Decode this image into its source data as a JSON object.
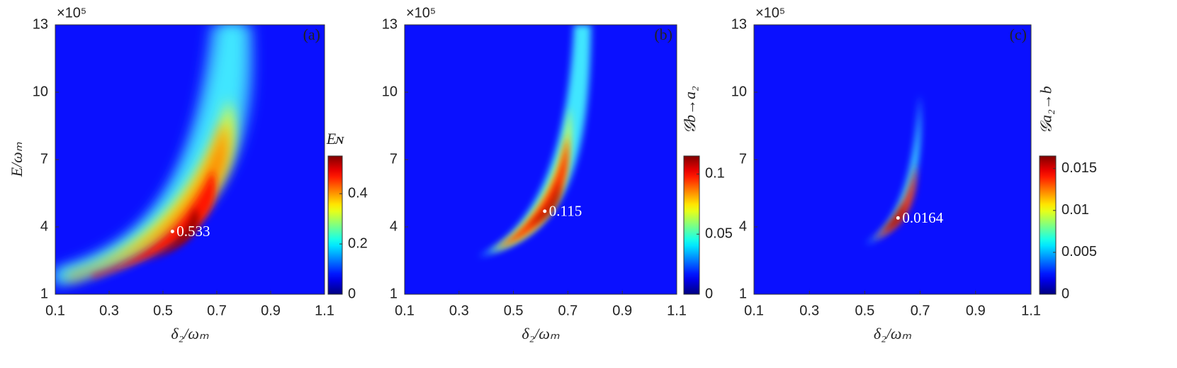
{
  "chart_data": [
    {
      "type": "heatmap",
      "panel_label": "(a)",
      "xlabel": "δ₂/ωₘ",
      "ylabel": "E/ωₘ",
      "y_multiplier": "×10⁵",
      "xlim": [
        0.1,
        1.1
      ],
      "xticks": [
        0.1,
        0.3,
        0.5,
        0.7,
        0.9,
        1.1
      ],
      "ylim": [
        1,
        13
      ],
      "yticks": [
        1,
        4,
        7,
        10,
        13
      ],
      "colorbar_label": "Eɴ",
      "clim": [
        0,
        0.55
      ],
      "cticks": [
        0,
        0.2,
        0.4
      ],
      "peak_x": 0.535,
      "peak_y": 3.8,
      "peak_value": 0.533
    },
    {
      "type": "heatmap",
      "panel_label": "(b)",
      "xlabel": "δ₂/ωₘ",
      "y_multiplier": "×10⁵",
      "xlim": [
        0.1,
        1.1
      ],
      "xticks": [
        0.1,
        0.3,
        0.5,
        0.7,
        0.9,
        1.1
      ],
      "ylim": [
        1,
        13
      ],
      "yticks": [
        1,
        4,
        7,
        10,
        13
      ],
      "colorbar_label": "𝒢b→a₂",
      "clim": [
        0,
        0.115
      ],
      "cticks": [
        0,
        0.05,
        0.1
      ],
      "peak_x": 0.615,
      "peak_y": 4.7,
      "peak_value": 0.115
    },
    {
      "type": "heatmap",
      "panel_label": "(c)",
      "xlabel": "δ₂/ωₘ",
      "y_multiplier": "×10⁵",
      "xlim": [
        0.1,
        1.1
      ],
      "xticks": [
        0.1,
        0.3,
        0.5,
        0.7,
        0.9,
        1.1
      ],
      "ylim": [
        1,
        13
      ],
      "yticks": [
        1,
        4,
        7,
        10,
        13
      ],
      "colorbar_label": "𝒢a₂→b",
      "clim": [
        0,
        0.0165
      ],
      "cticks": [
        0,
        0.005,
        0.01,
        0.015
      ],
      "peak_x": 0.62,
      "peak_y": 4.4,
      "peak_value": 0.0164
    }
  ]
}
